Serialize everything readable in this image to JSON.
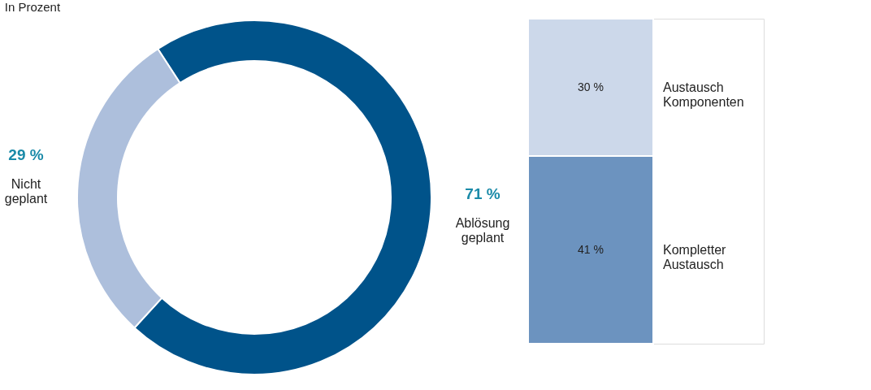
{
  "chart_data": [
    {
      "type": "donut",
      "subtitle": "In Prozent",
      "categories": [
        "Ablösung geplant",
        "Nicht geplant"
      ],
      "values": [
        71,
        29
      ],
      "colors": [
        "#00538a",
        "#adbfdc"
      ],
      "value_labels": [
        "71 %",
        "29 %"
      ],
      "legend": false
    },
    {
      "type": "bar",
      "stacked": true,
      "categories": [
        null
      ],
      "tick_labels": false,
      "series": [
        {
          "name": "Kompletter Austausch",
          "color": "#6c93bf",
          "values": [
            41
          ],
          "value_labels": [
            "41 %"
          ]
        },
        {
          "name": "Austausch Komponenten",
          "color": "#ccd8ea",
          "values": [
            30
          ],
          "value_labels": [
            "30 %"
          ]
        }
      ]
    }
  ]
}
